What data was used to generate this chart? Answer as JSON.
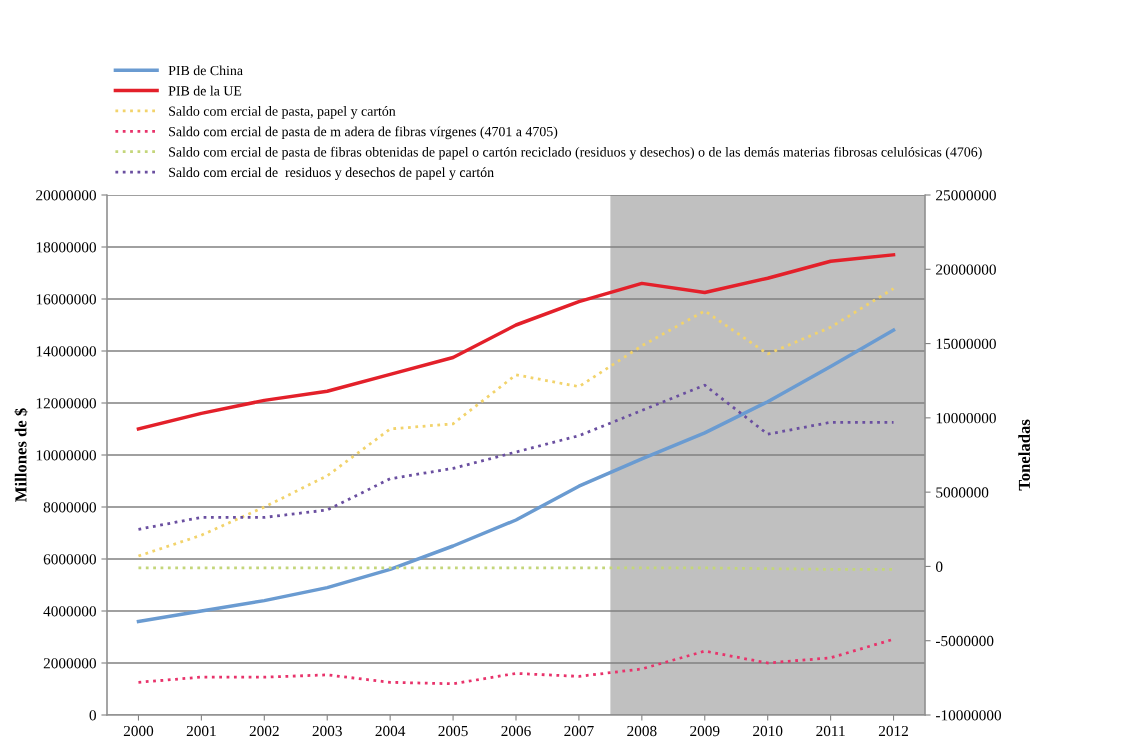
{
  "chart_data": {
    "type": "line",
    "x": [
      2000,
      2001,
      2002,
      2003,
      2004,
      2005,
      2006,
      2007,
      2008,
      2009,
      2010,
      2011,
      2012
    ],
    "xlim": [
      1999.5,
      2012.5
    ],
    "xticks": [
      2000,
      2001,
      2002,
      2003,
      2004,
      2005,
      2006,
      2007,
      2008,
      2009,
      2010,
      2011,
      2012
    ],
    "ylabel": "Millones de $",
    "y2label": "Toneladas",
    "ylim": [
      0,
      20000000
    ],
    "yticks": [
      0,
      2000000,
      4000000,
      6000000,
      8000000,
      10000000,
      12000000,
      14000000,
      16000000,
      18000000,
      20000000
    ],
    "y2lim": [
      -10000000,
      25000000
    ],
    "y2ticks": [
      -10000000,
      -5000000,
      0,
      5000000,
      10000000,
      15000000,
      20000000,
      25000000
    ],
    "grid": "y",
    "legend": "top",
    "bands": [
      {
        "axis": "x",
        "from": 2007.5,
        "to": 2012.5,
        "color": "#c0c0c0"
      }
    ],
    "series": [
      {
        "name": "PIB de China",
        "color": "#6a9bd1",
        "line_style": "solid",
        "values": [
          3600000,
          4000000,
          4400000,
          4900000,
          5600000,
          6500000,
          7500000,
          8800000,
          9850000,
          10850000,
          12050000,
          13400000,
          14800000
        ]
      },
      {
        "name": "PIB de la UE",
        "color": "#e3202a",
        "line_style": "solid",
        "values": [
          11000000,
          11600000,
          12100000,
          12450000,
          13100000,
          13750000,
          15000000,
          15900000,
          16600000,
          16250000,
          16800000,
          17450000,
          17700000
        ]
      },
      {
        "name": "Saldo com ercial de pasta, papel y cartón",
        "color": "#f2d36b",
        "line_style": "dotted",
        "axis": "y2",
        "values": [
          700000,
          2100000,
          4000000,
          6100000,
          9250000,
          9600000,
          12900000,
          12100000,
          14850000,
          17200000,
          14300000,
          16100000,
          18700000
        ]
      },
      {
        "name": "Saldo com ercial de pasta de m adera de fibras vírgenes (4701 a 4705)",
        "color": "#e8336b",
        "line_style": "dotted",
        "axis": "y2",
        "values": [
          -7800000,
          -7450000,
          -7450000,
          -7300000,
          -7800000,
          -7900000,
          -7200000,
          -7400000,
          -6900000,
          -5700000,
          -6500000,
          -6150000,
          -4900000
        ]
      },
      {
        "name": "Saldo com ercial de pasta de fibras obtenidas de papel o cartón reciclado (residuos y desechos) o de las demás materias fibrosas celulósicas (4706)",
        "color": "#c4d67a",
        "line_style": "dotted",
        "axis": "y2",
        "values": [
          -100000,
          -100000,
          -100000,
          -100000,
          -100000,
          -100000,
          -100000,
          -100000,
          -100000,
          -100000,
          -150000,
          -200000,
          -200000
        ]
      },
      {
        "name": "Saldo com ercial de  residuos y desechos de papel y cartón",
        "color": "#6a4fa0",
        "line_style": "dotted",
        "axis": "y2",
        "values": [
          2500000,
          3300000,
          3300000,
          3800000,
          5900000,
          6600000,
          7700000,
          8800000,
          10500000,
          12200000,
          8900000,
          9700000,
          9700000
        ]
      }
    ]
  }
}
